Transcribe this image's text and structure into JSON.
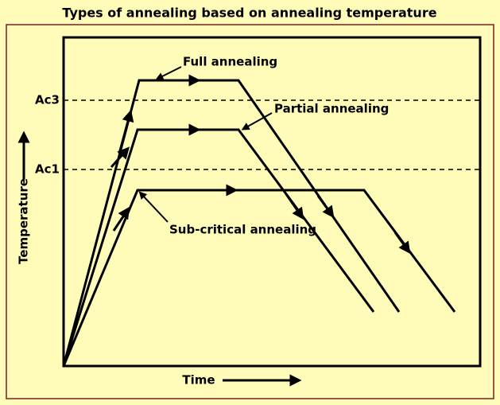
{
  "title": "Types of annealing based on annealing temperature",
  "y_axis": {
    "label": "Temperature",
    "levels": [
      "Ac3",
      "Ac1"
    ]
  },
  "x_axis": {
    "label": "Time"
  },
  "curves": [
    {
      "label": "Full annealing"
    },
    {
      "label": "Partial annealing"
    },
    {
      "label": "Sub-critical annealing"
    }
  ]
}
